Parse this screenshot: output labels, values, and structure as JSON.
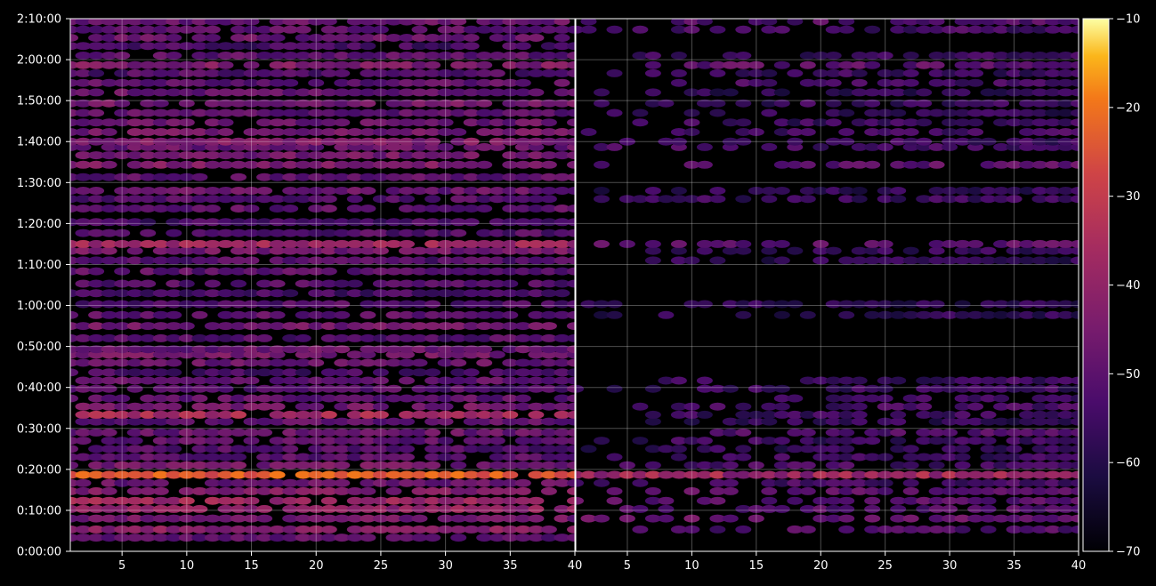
{
  "chart_data": {
    "type": "heatmap",
    "title": "",
    "xlabel": "",
    "ylabel": "",
    "panels": [
      {
        "xlim": [
          1,
          40
        ],
        "x_ticks": [
          "5",
          "10",
          "15",
          "20",
          "25",
          "30",
          "35",
          "40"
        ]
      },
      {
        "xlim": [
          1,
          40
        ],
        "x_ticks": [
          "5",
          "10",
          "15",
          "20",
          "25",
          "30",
          "35",
          "40"
        ]
      }
    ],
    "y_ticks": [
      "0:00:00",
      "0:10:00",
      "0:20:00",
      "0:30:00",
      "0:40:00",
      "0:50:00",
      "1:00:00",
      "1:10:00",
      "1:20:00",
      "1:30:00",
      "1:40:00",
      "1:50:00",
      "2:00:00",
      "2:10:00"
    ],
    "ylim_seconds": [
      0,
      7800
    ],
    "colorbar": {
      "colormap": "inferno",
      "vmin": -70,
      "vmax": -10,
      "ticks": [
        "−70",
        "−60",
        "−50",
        "−40",
        "−30",
        "−20",
        "−10"
      ]
    },
    "grid": true,
    "rows": [
      {
        "t": 20,
        "a": -50,
        "b": null
      },
      {
        "t": 32,
        "a": -42,
        "b": -52
      },
      {
        "t": 48,
        "a": -46,
        "b": -48
      },
      {
        "t": 62,
        "a": -40,
        "b": -52
      },
      {
        "t": 74,
        "a": -38,
        "b": -50
      },
      {
        "t": 88,
        "a": -44,
        "b": -50
      },
      {
        "t": 100,
        "a": -48,
        "b": -54
      },
      {
        "t": 112,
        "a": -24,
        "b": -36
      },
      {
        "t": 126,
        "a": -46,
        "b": -54
      },
      {
        "t": 138,
        "a": -50,
        "b": -56
      },
      {
        "t": 150,
        "a": -52,
        "b": -58
      },
      {
        "t": 162,
        "a": -50,
        "b": -56
      },
      {
        "t": 174,
        "a": -48,
        "b": -52
      },
      {
        "t": 190,
        "a": -50,
        "b": -58
      },
      {
        "t": 200,
        "a": -36,
        "b": -56
      },
      {
        "t": 212,
        "a": -46,
        "b": -54
      },
      {
        "t": 224,
        "a": -50,
        "b": -56
      },
      {
        "t": 238,
        "a": -52,
        "b": -56
      },
      {
        "t": 250,
        "a": -50,
        "b": -56
      },
      {
        "t": 262,
        "a": -54,
        "b": null
      },
      {
        "t": 276,
        "a": -48,
        "b": null
      },
      {
        "t": 288,
        "a": -46,
        "b": null
      },
      {
        "t": 296,
        "a": -48,
        "b": null
      },
      {
        "t": 312,
        "a": -52,
        "b": null
      },
      {
        "t": 330,
        "a": -46,
        "b": null
      },
      {
        "t": 346,
        "a": -50,
        "b": -58
      },
      {
        "t": 362,
        "a": -52,
        "b": -58
      },
      {
        "t": 378,
        "a": -54,
        "b": null
      },
      {
        "t": 392,
        "a": -52,
        "b": null
      },
      {
        "t": 410,
        "a": -50,
        "b": null
      },
      {
        "t": 426,
        "a": -52,
        "b": -58
      },
      {
        "t": 440,
        "a": -46,
        "b": -56
      },
      {
        "t": 450,
        "a": -38,
        "b": -50
      },
      {
        "t": 466,
        "a": -52,
        "b": null
      },
      {
        "t": 482,
        "a": -54,
        "b": null
      },
      {
        "t": 502,
        "a": -50,
        "b": null
      },
      {
        "t": 516,
        "a": -52,
        "b": -56
      },
      {
        "t": 528,
        "a": -48,
        "b": -58
      },
      {
        "t": 548,
        "a": -50,
        "b": null
      },
      {
        "t": 566,
        "a": -44,
        "b": -50
      },
      {
        "t": 580,
        "a": -46,
        "b": null
      },
      {
        "t": 592,
        "a": -48,
        "b": -54
      },
      {
        "t": 600,
        "a": -44,
        "b": -56
      },
      {
        "t": 614,
        "a": -46,
        "b": -54
      },
      {
        "t": 628,
        "a": -48,
        "b": -56
      },
      {
        "t": 642,
        "a": -50,
        "b": -58
      },
      {
        "t": 656,
        "a": -46,
        "b": -56
      },
      {
        "t": 672,
        "a": -48,
        "b": -58
      },
      {
        "t": 686,
        "a": -50,
        "b": -54
      },
      {
        "t": 700,
        "a": -52,
        "b": -56
      },
      {
        "t": 712,
        "a": -44,
        "b": -50
      },
      {
        "t": 726,
        "a": -50,
        "b": -56
      },
      {
        "t": 740,
        "a": -54,
        "b": null
      },
      {
        "t": 752,
        "a": -48,
        "b": null
      },
      {
        "t": 764,
        "a": -50,
        "b": -54
      },
      {
        "t": 776,
        "a": -48,
        "b": -52
      },
      {
        "t": 788,
        "a": -50,
        "b": -54
      }
    ]
  }
}
